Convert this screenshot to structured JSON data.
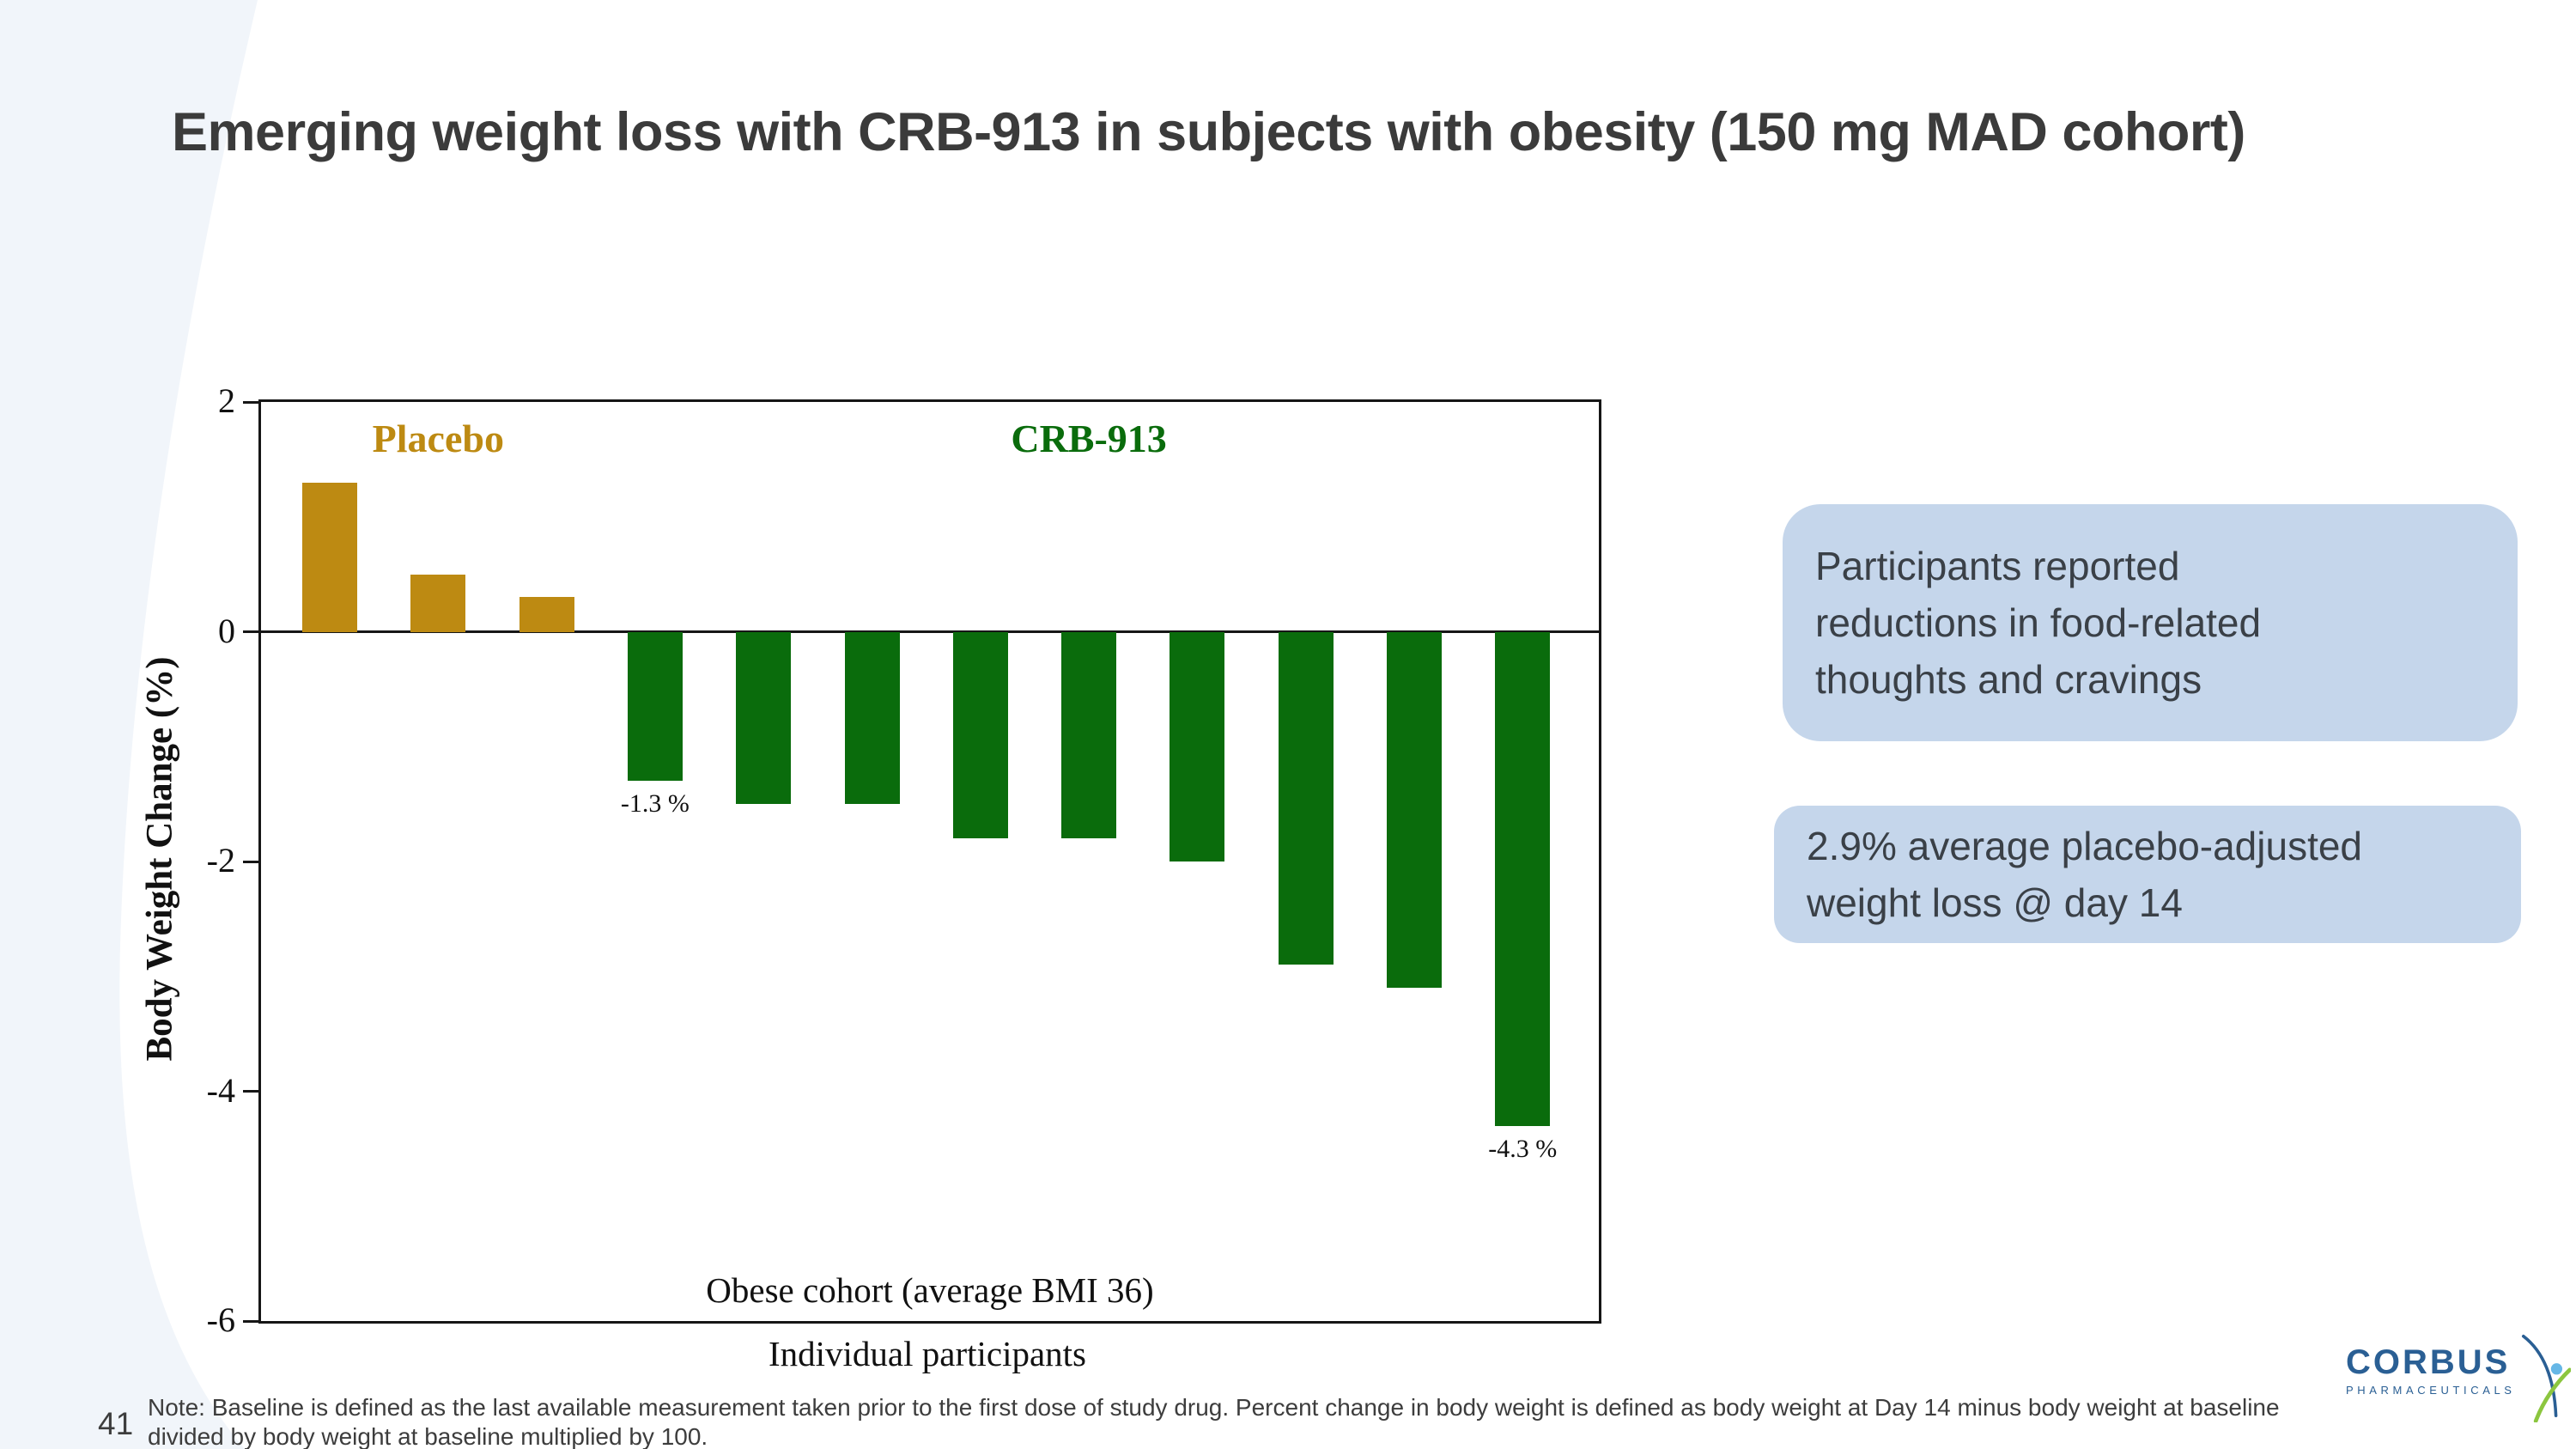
{
  "slide": {
    "title": "Emerging weight loss with CRB-913 in subjects with obesity (150 mg MAD cohort)",
    "page_number": "41",
    "note_lines": [
      "Note: Baseline is defined as the last available measurement taken prior to the first dose of study drug. Percent change in body weight is defined as body weight at Day 14 minus body weight at baseline",
      "divided by body weight at baseline multiplied by 100."
    ]
  },
  "callouts": [
    {
      "lines": [
        "Participants reported",
        "reductions in food-related",
        "thoughts and cravings"
      ]
    },
    {
      "lines": [
        "2.9% average placebo-adjusted",
        "weight loss @ day 14"
      ]
    }
  ],
  "logo": {
    "brand": "CORBUS",
    "sub_brand": "PHARMACEUTICALS",
    "colors": {
      "blue": "#2a5f94",
      "green": "#8cc63f",
      "light_blue": "#66b7e6"
    }
  },
  "colors": {
    "placebo_gold": "#bd8a12",
    "crb_green": "#0a6c0c",
    "callout_bg": "#c5d6eb",
    "text_dark": "#3b3b3b",
    "left_band": "#f1f5fa"
  },
  "chart_data": {
    "type": "bar",
    "title": "",
    "ylabel": "Body Weight Change (%)",
    "xlabel": "Individual participants",
    "xlabel_secondary": "Obese cohort (average BMI 36)",
    "ylim": [
      -6,
      2
    ],
    "yticks": [
      2,
      0,
      -2,
      -4,
      -6
    ],
    "grid": false,
    "legend_position": "inside-top",
    "groups": [
      {
        "name": "Placebo",
        "color": "#bd8a12",
        "values": [
          1.3,
          0.5,
          0.3
        ]
      },
      {
        "name": "CRB-913",
        "color": "#0a6c0c",
        "values": [
          -1.3,
          -1.5,
          -1.5,
          -1.8,
          -1.8,
          -2.0,
          -2.9,
          -3.1,
          -4.3
        ]
      }
    ],
    "annotations": [
      {
        "bar_index": 3,
        "text": "-1.3 %"
      },
      {
        "bar_index": 11,
        "text": "-4.3 %"
      }
    ]
  }
}
